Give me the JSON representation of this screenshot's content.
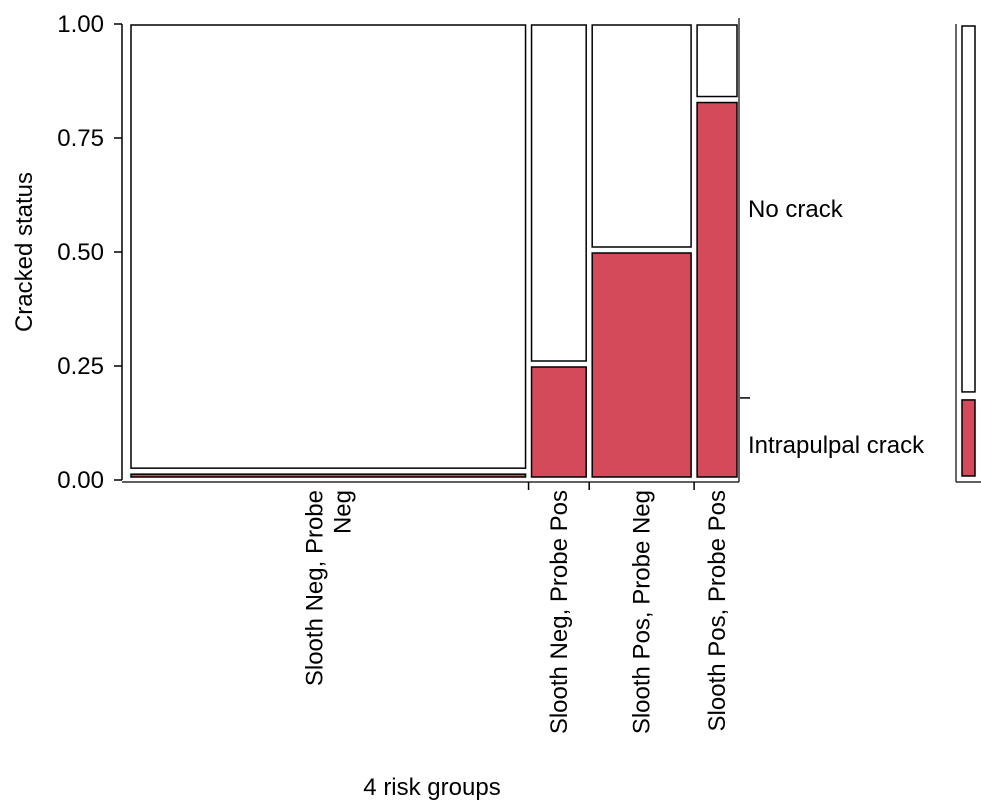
{
  "chart_data": {
    "type": "mosaic",
    "xlabel": "4 risk groups",
    "ylabel": "Cracked status",
    "ylim": [
      0,
      1
    ],
    "yticks": [
      "0.00",
      "0.25",
      "0.50",
      "0.75",
      "1.00"
    ],
    "ytick_values": [
      0,
      0.25,
      0.5,
      0.75,
      1
    ],
    "categories": [
      {
        "label_lines": [
          "Slooth Neg, Probe",
          "Neg"
        ],
        "share": 0.672
      },
      {
        "label_lines": [
          "Slooth Neg, Probe Pos"
        ],
        "share": 0.096
      },
      {
        "label_lines": [
          "Slooth Pos, Probe Neg"
        ],
        "share": 0.171
      },
      {
        "label_lines": [
          "Slooth Pos, Probe Pos"
        ],
        "share": 0.071
      }
    ],
    "series": [
      {
        "name": "Intrapulpal crack",
        "values": [
          0.015,
          0.25,
          0.5,
          0.83
        ]
      },
      {
        "name": "No crack",
        "values": [
          0.985,
          0.75,
          0.5,
          0.17
        ]
      }
    ],
    "overall": {
      "Intrapulpal crack": 0.18,
      "No crack": 0.82
    },
    "colors": {
      "crack": "#d44a5a",
      "no_crack": "#ffffff",
      "outline": "#000000"
    }
  }
}
